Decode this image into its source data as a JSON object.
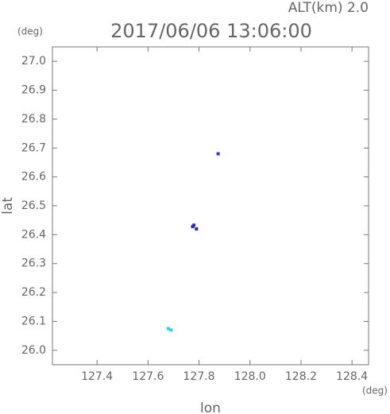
{
  "chart_data": {
    "type": "scatter",
    "title": "2017/06/06 13:06:00",
    "subtitle": "ALT(km) 2.0",
    "x_label": "lon",
    "y_label": "lat",
    "x_unit": "(deg)",
    "y_unit": "(deg)",
    "xlim": [
      127.225,
      128.465
    ],
    "ylim": [
      25.95,
      27.05
    ],
    "xticks": [
      127.4,
      127.6,
      127.8,
      {
        "value": 128.0,
        "label": "128.0"
      },
      128.2,
      128.4
    ],
    "yticks": [
      {
        "value": 26.0,
        "label": "26.0"
      },
      26.1,
      26.2,
      26.3,
      26.4,
      26.5,
      26.6,
      26.7,
      26.8,
      26.9,
      {
        "value": 27.0,
        "label": "27.0"
      }
    ],
    "series": [
      {
        "color": "#3333cc",
        "x": [
          127.875
        ],
        "y": [
          26.68
        ]
      },
      {
        "color": "#2a2aa8",
        "x": [
          127.775,
          127.78,
          127.79
        ],
        "y": [
          26.428,
          26.433,
          26.42
        ]
      },
      {
        "color": "#33ccee",
        "x": [
          127.68,
          127.69
        ],
        "y": [
          26.075,
          26.07
        ]
      }
    ]
  }
}
